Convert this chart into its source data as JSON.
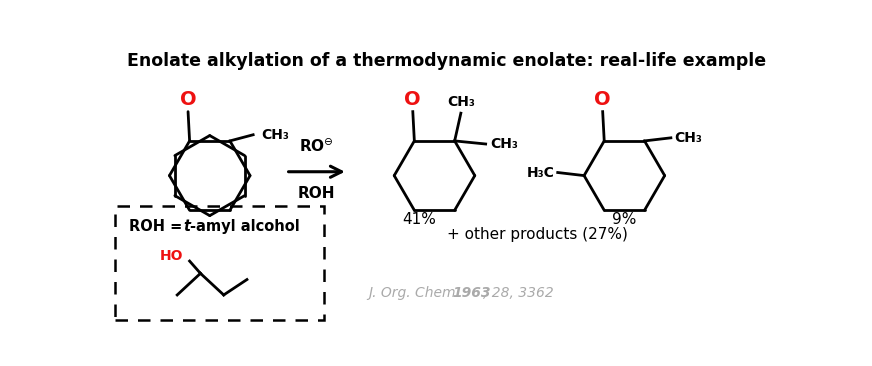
{
  "title": "Enolate alkylation of a thermodynamic enolate: real-life example",
  "title_fontsize": 12.5,
  "title_fontweight": "bold",
  "bg_color": "#ffffff",
  "black": "#000000",
  "red": "#ee1111",
  "gray": "#aaaaaa",
  "percent_41": "41%",
  "percent_9": "9%",
  "other_products": "+ other products (27%)",
  "roh_reagent": "ROH",
  "ch3_label": "CH₃",
  "h3c_label": "H₃C",
  "ho_label": "HO",
  "o_label": "O"
}
